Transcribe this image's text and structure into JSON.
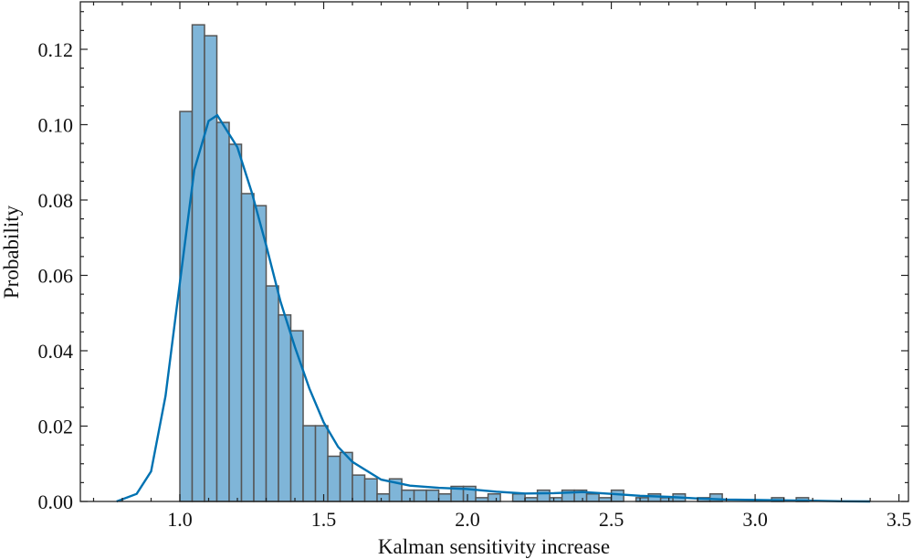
{
  "chart_data": {
    "type": "bar",
    "title": "",
    "xlabel": "Kalman sensitivity increase",
    "ylabel": "Probability",
    "xlim": [
      0.654,
      3.533
    ],
    "ylim": [
      0,
      0.1326
    ],
    "grid": false,
    "x_ticks": [
      1.0,
      1.5,
      2.0,
      2.5,
      3.0,
      3.5
    ],
    "x_tick_labels": [
      "1.0",
      "1.5",
      "2.0",
      "2.5",
      "3.0",
      "3.5"
    ],
    "y_ticks": [
      0,
      0.02,
      0.04,
      0.06,
      0.08,
      0.1,
      0.12
    ],
    "y_tick_labels": [
      "0.00",
      "0.02",
      "0.04",
      "0.06",
      "0.08",
      "0.10",
      "0.12"
    ],
    "histogram": {
      "bin_start": 1.0,
      "bin_width": 0.04286,
      "values": [
        0.1035,
        0.1265,
        0.1236,
        0.1006,
        0.0948,
        0.0817,
        0.0785,
        0.0572,
        0.0495,
        0.0453,
        0.0201,
        0.0201,
        0.012,
        0.013,
        0.007,
        0.006,
        0.002,
        0.006,
        0.003,
        0.003,
        0.003,
        0.002,
        0.004,
        0.004,
        0.001,
        0.002,
        0,
        0.002,
        0.001,
        0.003,
        0.001,
        0.003,
        0.003,
        0.002,
        0.001,
        0.003,
        0,
        0.001,
        0.002,
        0.001,
        0.002,
        0,
        0.001,
        0.002,
        0,
        0,
        0,
        0,
        0.001,
        0,
        0.001
      ],
      "color": "#7fb5d8",
      "edge_color": "#555555"
    },
    "kde": {
      "color": "#0072b2",
      "x": [
        0.78,
        0.85,
        0.9,
        0.95,
        1.0,
        1.05,
        1.1,
        1.13,
        1.2,
        1.25,
        1.3,
        1.35,
        1.4,
        1.45,
        1.5,
        1.55,
        1.6,
        1.7,
        1.8,
        1.9,
        2.0,
        2.1,
        2.2,
        2.3,
        2.4,
        2.5,
        2.6,
        2.7,
        2.8,
        2.9,
        3.0,
        3.1,
        3.2,
        3.3,
        3.4
      ],
      "y": [
        0,
        0.002,
        0.008,
        0.028,
        0.058,
        0.088,
        0.101,
        0.1025,
        0.094,
        0.082,
        0.068,
        0.053,
        0.041,
        0.03,
        0.021,
        0.0145,
        0.0105,
        0.0058,
        0.0042,
        0.0036,
        0.0033,
        0.0026,
        0.0021,
        0.0022,
        0.0025,
        0.002,
        0.0015,
        0.0012,
        0.0008,
        0.0005,
        0.0004,
        0.0003,
        0.0002,
        5e-05,
        0
      ]
    }
  }
}
